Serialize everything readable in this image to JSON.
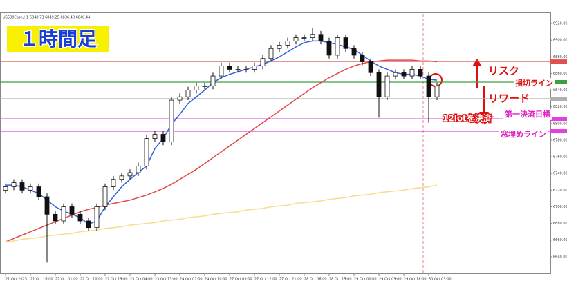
{
  "chart_data": {
    "type": "candlestick",
    "title": "１時間足",
    "symbol_info": "US500Cash,H1 6848.73 6849.25 6836.48 6840.44",
    "categories": [
      "21 Oct 2025",
      null,
      null,
      "21 Oct 16:00",
      null,
      null,
      "22 Oct 01:00",
      null,
      null,
      "22 Oct 10:00",
      null,
      null,
      "22 Oct 19:00",
      null,
      null,
      "23 Oct 04:00",
      null,
      null,
      "23 Oct 13:00",
      null,
      null,
      "24 Oct 01:00",
      null,
      null,
      "24 Oct 10:00",
      null,
      null,
      "27 Oct 03:00",
      null,
      null,
      "27 Oct 12:00",
      null,
      null,
      "27 Oct 21:00",
      null,
      null,
      "28 Oct 06:00",
      null,
      null,
      "28 Oct 15:00",
      null,
      null,
      "29 Oct 00:00",
      null,
      null,
      "29 Oct 09:00",
      null,
      null,
      "29 Oct 18:00",
      null,
      null,
      "30 Oct 03:00",
      null
    ],
    "open": [
      6720,
      6724,
      6729,
      6720,
      6724,
      6712,
      6691,
      6683,
      6700,
      6691,
      6683,
      6675,
      6700,
      6724,
      6733,
      6737,
      6741,
      6749,
      6782,
      6787,
      6778,
      6828,
      6832,
      6840,
      6845,
      6845,
      6857,
      6869,
      6865,
      6865,
      6865,
      6869,
      6878,
      6890,
      6894,
      6899,
      6903,
      6903,
      6907,
      6899,
      6882,
      6903,
      6890,
      6882,
      6874,
      6861,
      6832,
      6857,
      6861,
      6857,
      6865,
      6857,
      6832
    ],
    "high": [
      6728,
      6733,
      6733,
      6728,
      6728,
      6716,
      6695,
      6704,
      6704,
      6695,
      6687,
      6704,
      6728,
      6737,
      6741,
      6745,
      6753,
      6786,
      6791,
      6791,
      6832,
      6836,
      6844,
      6849,
      6849,
      6861,
      6873,
      6873,
      6869,
      6869,
      6873,
      6882,
      6894,
      6898,
      6903,
      6907,
      6907,
      6915,
      6911,
      6903,
      6907,
      6907,
      6894,
      6886,
      6878,
      6865,
      6861,
      6865,
      6865,
      6869,
      6869,
      6861,
      6849
    ],
    "low": [
      6716,
      6720,
      6716,
      6716,
      6708,
      6633,
      6679,
      6679,
      6687,
      6679,
      6671,
      6671,
      6696,
      6720,
      6729,
      6733,
      6737,
      6745,
      6778,
      6774,
      6774,
      6824,
      6828,
      6836,
      6841,
      6841,
      6853,
      6861,
      6861,
      6861,
      6861,
      6865,
      6874,
      6886,
      6890,
      6895,
      6899,
      6899,
      6895,
      6878,
      6878,
      6886,
      6878,
      6870,
      6857,
      6807,
      6828,
      6853,
      6853,
      6853,
      6853,
      6801,
      6828
    ],
    "close": [
      6724,
      6729,
      6720,
      6724,
      6712,
      6691,
      6683,
      6700,
      6691,
      6683,
      6675,
      6700,
      6724,
      6733,
      6737,
      6741,
      6749,
      6782,
      6787,
      6778,
      6828,
      6832,
      6840,
      6845,
      6845,
      6857,
      6869,
      6865,
      6865,
      6865,
      6869,
      6878,
      6890,
      6894,
      6899,
      6903,
      6903,
      6907,
      6899,
      6882,
      6903,
      6890,
      6882,
      6874,
      6861,
      6832,
      6857,
      6861,
      6857,
      6865,
      6857,
      6832,
      6845
    ],
    "series": [
      {
        "color": "#2f5fe0",
        "values": [
          6726,
          6726,
          6724,
          6720,
          6716,
          6708,
          6700,
          6695,
          6691,
          6687,
          6679,
          6683,
          6700,
          6712,
          6724,
          6733,
          6741,
          6749,
          6770,
          6782,
          6799,
          6811,
          6824,
          6832,
          6840,
          6849,
          6855,
          6859,
          6862,
          6865,
          6868,
          6871,
          6875,
          6880,
          6886,
          6892,
          6897,
          6899,
          6899,
          6897,
          6895,
          6892,
          6889,
          6882,
          6875,
          6869,
          6865,
          6861,
          6859,
          6859,
          6857,
          6853,
          6852
        ]
      },
      {
        "color": "#e04848",
        "values": [
          6658,
          6662,
          6666,
          6670,
          6674,
          6678,
          6682,
          6686,
          6690,
          6694,
          6697,
          6699,
          6702,
          6704,
          6706,
          6708,
          6711,
          6714,
          6718,
          6722,
          6727,
          6733,
          6739,
          6745,
          6752,
          6759,
          6766,
          6773,
          6780,
          6787,
          6794,
          6801,
          6808,
          6815,
          6822,
          6829,
          6836,
          6843,
          6849,
          6855,
          6860,
          6865,
          6869,
          6872,
          6874,
          6875,
          6876,
          6876,
          6876,
          6876,
          6875,
          6875,
          6874
        ]
      },
      {
        "color": "#f7dd8a",
        "values": [
          6658,
          6659,
          6661,
          6662,
          6663,
          6665,
          6666,
          6667,
          6668,
          6670,
          6671,
          6672,
          6674,
          6675,
          6676,
          6678,
          6679,
          6680,
          6681,
          6683,
          6684,
          6685,
          6687,
          6688,
          6689,
          6691,
          6692,
          6693,
          6694,
          6696,
          6697,
          6698,
          6700,
          6701,
          6702,
          6704,
          6705,
          6706,
          6707,
          6709,
          6710,
          6711,
          6713,
          6714,
          6715,
          6717,
          6718,
          6719,
          6720,
          6722,
          6723,
          6724,
          6726
        ]
      }
    ],
    "levels": [
      {
        "value": 6874.4,
        "color": "#e05050"
      },
      {
        "value": 6849.6,
        "color": "#3aa040"
      },
      {
        "value": 6829.7,
        "color": "#b0b0b0"
      },
      {
        "value": 6805.6,
        "color": "#e040e0"
      },
      {
        "value": 6790.7,
        "color": "#e040e0"
      }
    ],
    "ylim": [
      6620,
      6930
    ],
    "yticks": [
      {
        "value": 6640,
        "label": "6640.00"
      },
      {
        "value": 6660,
        "label": "6660.00"
      },
      {
        "value": 6680,
        "label": "6680.00"
      },
      {
        "value": 6700,
        "label": "6700.00"
      },
      {
        "value": 6720,
        "label": "6720.00"
      },
      {
        "value": 6740,
        "label": "6740.00"
      },
      {
        "value": 6760,
        "label": "6760.00"
      },
      {
        "value": 6780,
        "label": "6780.00"
      },
      {
        "value": 6800,
        "label": "6800.00"
      },
      {
        "value": 6820,
        "label": "6820.00"
      },
      {
        "value": 6840,
        "label": "6840.00"
      },
      {
        "value": 6860,
        "label": "6860.00"
      },
      {
        "value": 6880,
        "label": "6880.00"
      },
      {
        "value": 6900,
        "label": "6900.00"
      },
      {
        "value": 6920,
        "label": "6920.00"
      }
    ],
    "annotations": [
      {
        "text": "リスク",
        "color": "#e01010"
      },
      {
        "text": "損切ライン",
        "color": "#e01010"
      },
      {
        "text": "リワード",
        "color": "#e01010"
      },
      {
        "text": "12lotを決済",
        "color": "#ffffff"
      },
      {
        "text": "第一決済目標",
        "color": "#e020c0"
      },
      {
        "text": "窓埋めライン",
        "color": "#e020c0"
      }
    ]
  }
}
